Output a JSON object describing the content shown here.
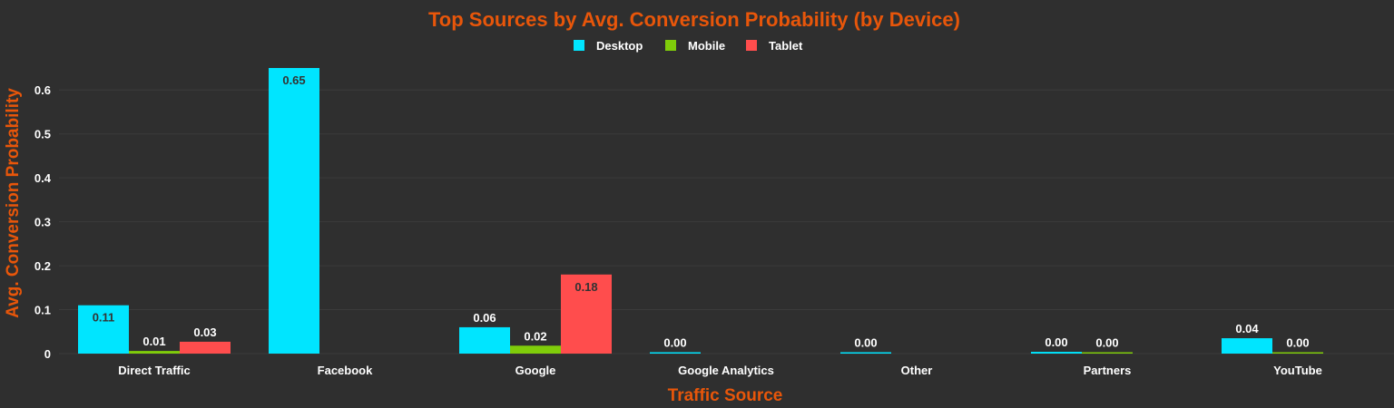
{
  "colors": {
    "background": "#2f2f2f",
    "accent": "#e8560a",
    "grid": "#3b3b3b",
    "text": "#ffffff",
    "inside_label": "#333333"
  },
  "chart_data": {
    "type": "bar",
    "title": "Top Sources by Avg. Conversion Probability (by Device)",
    "xlabel": "Traffic Source",
    "ylabel": "Avg. Conversion Probability",
    "ylim": [
      0,
      0.66
    ],
    "yticks": [
      0,
      0.1,
      0.2,
      0.3,
      0.4,
      0.5,
      0.6
    ],
    "ytick_labels": [
      "0",
      "0.1",
      "0.2",
      "0.3",
      "0.4",
      "0.5",
      "0.6"
    ],
    "grid": true,
    "legend_position": "top-center",
    "categories": [
      "Direct Traffic",
      "Facebook",
      "Google",
      "Google Analytics",
      "Other",
      "Partners",
      "YouTube"
    ],
    "series": [
      {
        "name": "Desktop",
        "color": "#00e5ff",
        "values": [
          0.11,
          0.65,
          0.06,
          0.003,
          0.002,
          0.004,
          0.035
        ],
        "labels": [
          "0.11",
          "0.65",
          "0.06",
          "0.00",
          "0.00",
          "0.00",
          "0.04"
        ]
      },
      {
        "name": "Mobile",
        "color": "#7fcc0a",
        "values": [
          0.006,
          null,
          0.018,
          null,
          null,
          0.002,
          0.003
        ],
        "labels": [
          "0.01",
          "",
          "0.02",
          "",
          "",
          "0.00",
          "0.00"
        ]
      },
      {
        "name": "Tablet",
        "color": "#ff4d4d",
        "values": [
          0.027,
          null,
          0.18,
          null,
          null,
          null,
          null
        ],
        "labels": [
          "0.03",
          "",
          "0.18",
          "",
          "",
          "",
          ""
        ]
      }
    ]
  }
}
